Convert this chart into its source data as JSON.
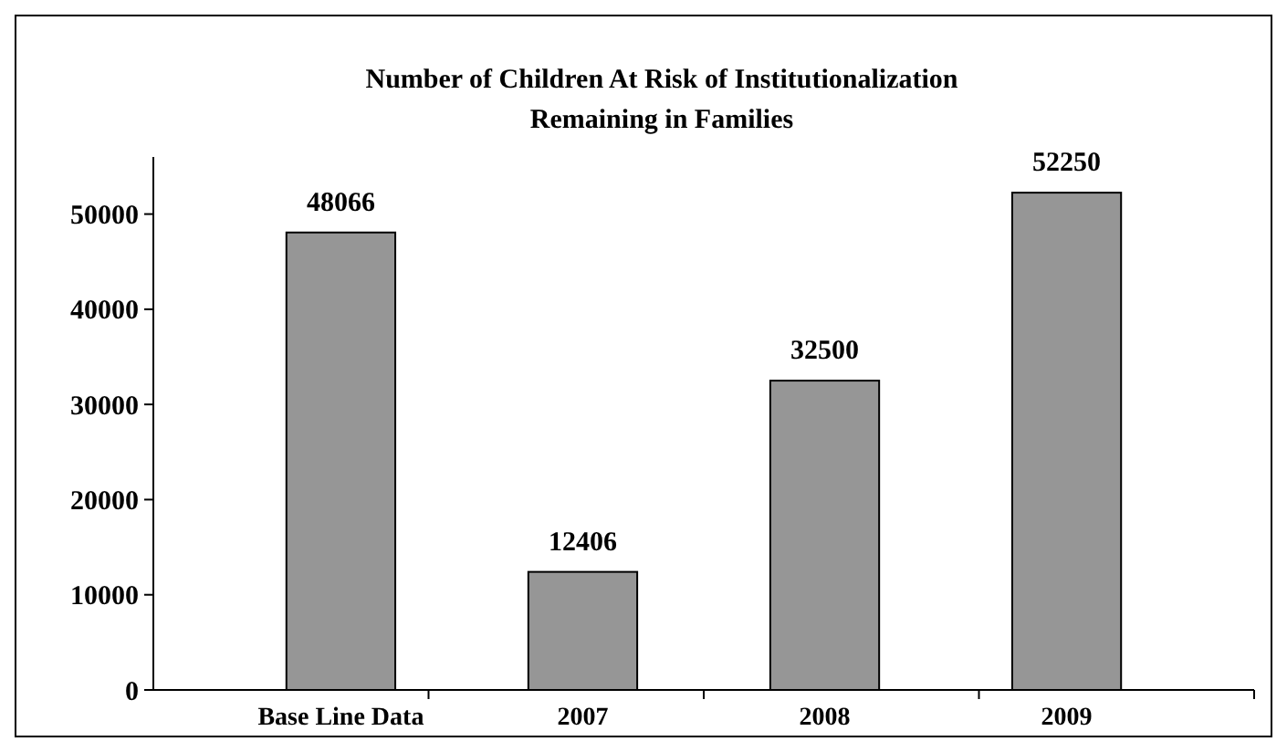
{
  "chart_data": {
    "type": "bar",
    "title": "Number of Children At Risk of Institutionalization\nRemaining in Families",
    "categories": [
      "Base Line Data",
      "2007",
      "2008",
      "2009"
    ],
    "values": [
      48066,
      12406,
      32500,
      52250
    ],
    "color": "#969696",
    "ylim": [
      0,
      56000
    ],
    "yticks": [
      0,
      10000,
      20000,
      30000,
      40000,
      50000
    ],
    "data_labels": true,
    "grid": false
  }
}
